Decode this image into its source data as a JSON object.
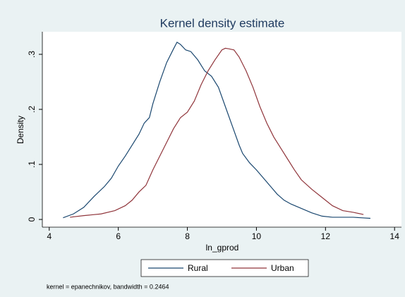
{
  "chart_data": {
    "type": "line",
    "title": "Kernel density estimate",
    "x_label": "ln_gprod",
    "y_label": "Density",
    "note": "kernel = epanechnikov, bandwidth = 0.2464",
    "xlim": [
      3.8,
      14.2
    ],
    "xticks": [
      4,
      6,
      8,
      10,
      12,
      14
    ],
    "ylim": [
      -0.014,
      0.341
    ],
    "yticks": [
      0,
      {
        "value": 0.1,
        "label": ".1"
      },
      {
        "value": 0.2,
        "label": ".2"
      },
      {
        "value": 0.3,
        "label": ".3"
      }
    ],
    "grid": false,
    "legend": "bottom",
    "series": [
      {
        "name": "Rural",
        "color": "#1a476f",
        "x": [
          4.4,
          4.7,
          5.0,
          5.3,
          5.6,
          5.8,
          6.0,
          6.2,
          6.4,
          6.6,
          6.75,
          6.9,
          7.0,
          7.2,
          7.4,
          7.6,
          7.7,
          7.8,
          7.95,
          8.1,
          8.3,
          8.5,
          8.7,
          8.9,
          9.1,
          9.3,
          9.5,
          9.6,
          9.8,
          10.0,
          10.3,
          10.6,
          10.8,
          11.0,
          11.3,
          11.6,
          11.9,
          12.2,
          12.8,
          13.3
        ],
        "values": [
          0.003,
          0.01,
          0.022,
          0.042,
          0.06,
          0.075,
          0.097,
          0.115,
          0.135,
          0.155,
          0.175,
          0.185,
          0.21,
          0.25,
          0.285,
          0.31,
          0.322,
          0.318,
          0.308,
          0.305,
          0.29,
          0.27,
          0.26,
          0.24,
          0.205,
          0.17,
          0.135,
          0.12,
          0.103,
          0.09,
          0.068,
          0.046,
          0.035,
          0.028,
          0.02,
          0.012,
          0.006,
          0.004,
          0.004,
          0.002
        ]
      },
      {
        "name": "Urban",
        "color": "#90353b",
        "x": [
          4.6,
          5.0,
          5.5,
          5.9,
          6.2,
          6.4,
          6.6,
          6.8,
          7.0,
          7.2,
          7.4,
          7.6,
          7.8,
          8.0,
          8.2,
          8.4,
          8.6,
          8.8,
          9.0,
          9.1,
          9.2,
          9.35,
          9.5,
          9.7,
          9.9,
          10.1,
          10.3,
          10.5,
          10.7,
          10.9,
          11.1,
          11.3,
          11.6,
          11.9,
          12.2,
          12.5,
          12.8,
          13.1
        ],
        "values": [
          0.004,
          0.007,
          0.01,
          0.016,
          0.025,
          0.035,
          0.05,
          0.062,
          0.09,
          0.115,
          0.14,
          0.165,
          0.185,
          0.195,
          0.215,
          0.245,
          0.27,
          0.29,
          0.308,
          0.311,
          0.31,
          0.308,
          0.295,
          0.27,
          0.24,
          0.205,
          0.175,
          0.15,
          0.13,
          0.11,
          0.09,
          0.072,
          0.055,
          0.04,
          0.025,
          0.016,
          0.013,
          0.009
        ]
      }
    ]
  }
}
